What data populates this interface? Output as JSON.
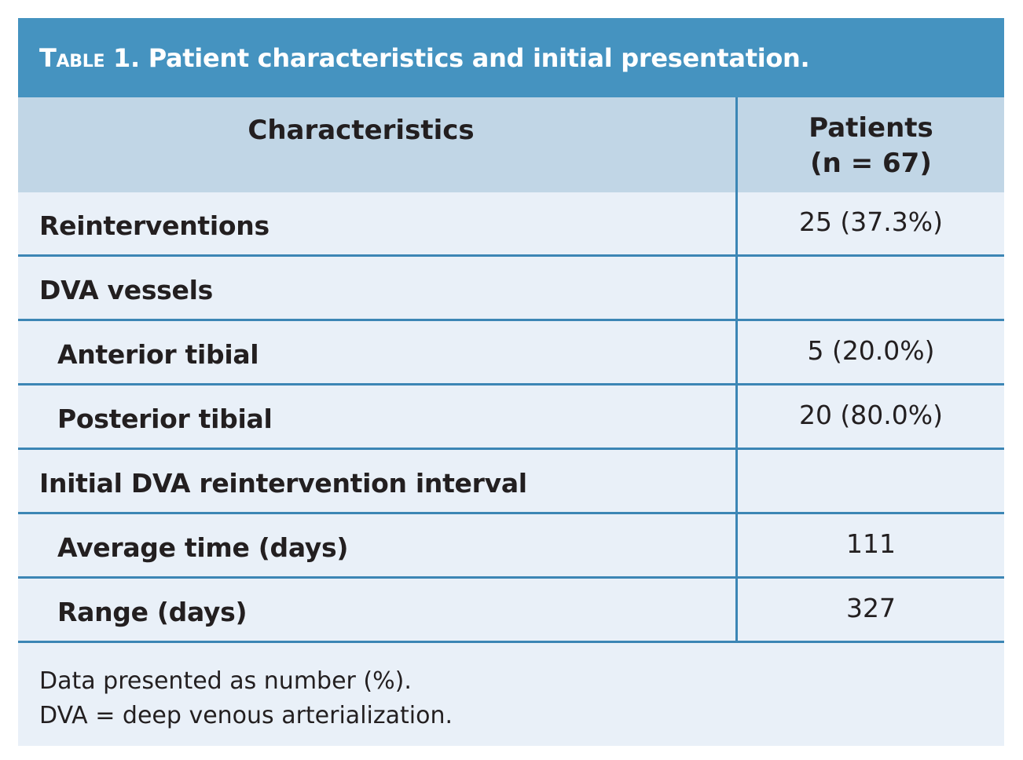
{
  "table": {
    "label": "Table 1.",
    "title": "Patient characteristics and initial presentation.",
    "header": {
      "characteristics": "Characteristics",
      "patients_line1": "Patients",
      "patients_line2": "(n = 67)"
    },
    "rows": [
      {
        "label": "Reinterventions",
        "value": "25 (37.3%)",
        "indent": false
      },
      {
        "label": "DVA vessels",
        "value": "",
        "indent": false
      },
      {
        "label": "Anterior tibial",
        "value": "5 (20.0%)",
        "indent": true
      },
      {
        "label": "Posterior tibial",
        "value": "20 (80.0%)",
        "indent": true
      },
      {
        "label": "Initial DVA reintervention interval",
        "value": "",
        "indent": false
      },
      {
        "label": "Average time (days)",
        "value": "111",
        "indent": true
      },
      {
        "label": "Range (days)",
        "value": "327",
        "indent": true
      }
    ],
    "footnotes": [
      "Data presented as number (%).",
      "DVA = deep venous arterialization."
    ]
  },
  "colors": {
    "title_bar": "#4593c0",
    "header_bg": "#c1d6e6",
    "body_bg": "#e9f0f8",
    "rule": "#3c86b5"
  }
}
